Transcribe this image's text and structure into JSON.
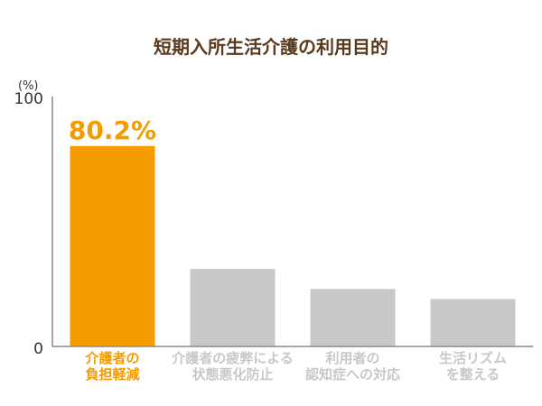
{
  "chart_data": {
    "type": "bar",
    "title": "短期入所生活介護の利用目的",
    "unit_label": "(%)",
    "xlabel": "",
    "ylabel": "",
    "ylim": [
      0,
      100
    ],
    "y_ticks": [
      "0",
      "100"
    ],
    "grid": false,
    "legend": "none",
    "categories": [
      [
        "介護者の",
        "負担軽減"
      ],
      [
        "介護者の疲弊による",
        "状態悪化防止"
      ],
      [
        "利用者の",
        "認知症への対応"
      ],
      [
        "生活リズム",
        "を整える"
      ]
    ],
    "values": [
      80.2,
      31,
      23,
      19
    ],
    "data_labels": [
      "80.2%",
      null,
      null,
      null
    ],
    "bar_colors": [
      "#f59b00",
      "#c8c8c8",
      "#c8c8c8",
      "#c8c8c8"
    ],
    "label_colors": [
      "#f59b00",
      "#c8c8c8",
      "#c8c8c8",
      "#c8c8c8"
    ],
    "title_color": "#5a3a1c",
    "axis_color": "#888888"
  }
}
